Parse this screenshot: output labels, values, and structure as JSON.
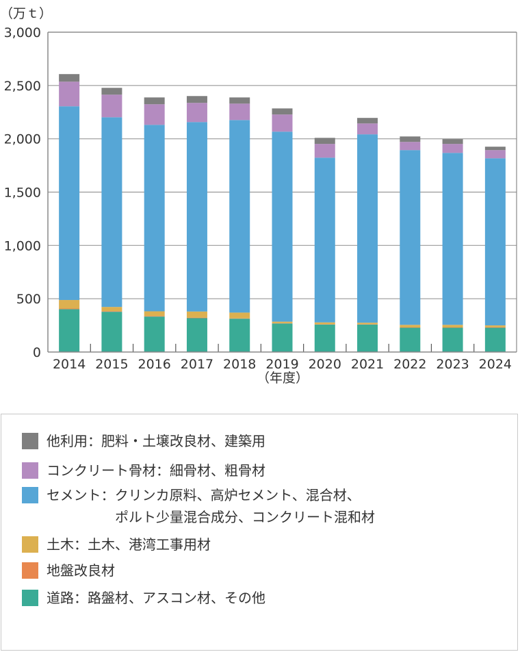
{
  "chart_data": {
    "type": "bar",
    "stacked": true,
    "unit_label": "（万ｔ）",
    "xlabel": "（年度）",
    "ylim": [
      0,
      3000
    ],
    "yticks": [
      0,
      500,
      1000,
      1500,
      2000,
      2500,
      3000
    ],
    "ytick_labels": [
      "0",
      "500",
      "1,000",
      "1,500",
      "2,000",
      "2,500",
      "3,000"
    ],
    "grid": true,
    "legend_placement": "bottom",
    "categories": [
      "2014",
      "2015",
      "2016",
      "2017",
      "2018",
      "2019",
      "2020",
      "2021",
      "2022",
      "2023",
      "2024"
    ],
    "series": [
      {
        "name": "道路：路盤材、アスコン材、その他",
        "color": "#3aab96",
        "values": [
          402,
          378,
          333,
          318,
          313,
          268,
          258,
          258,
          228,
          228,
          228
        ]
      },
      {
        "name": "地盤改良材",
        "color": "#e8874e",
        "values": [
          6,
          6,
          6,
          5,
          3,
          3,
          3,
          3,
          3,
          3,
          5
        ]
      },
      {
        "name": "土木：土木、港湾工事用材",
        "color": "#dcb050",
        "values": [
          80,
          39,
          43,
          57,
          54,
          14,
          17,
          14,
          24,
          24,
          17
        ]
      },
      {
        "name": "セメント：クリンカ原料、高炉セメント、混合材、\n　　　　　ポルト少量混合成分、コンクリート混和材",
        "color": "#56a6d6",
        "values": [
          1817,
          1779,
          1749,
          1777,
          1806,
          1782,
          1545,
          1767,
          1639,
          1613,
          1567
        ]
      },
      {
        "name": "コンクリート骨材：細骨材、粗骨材",
        "color": "#b48bc0",
        "values": [
          231,
          212,
          193,
          180,
          154,
          161,
          129,
          102,
          77,
          84,
          77
        ]
      },
      {
        "name": "他利用：肥料・土壌改良材、建築用",
        "color": "#7f7f7f",
        "values": [
          71,
          64,
          64,
          64,
          58,
          57,
          57,
          52,
          51,
          45,
          32
        ]
      }
    ]
  },
  "legend_order": [
    5,
    4,
    3,
    2,
    1,
    0
  ]
}
